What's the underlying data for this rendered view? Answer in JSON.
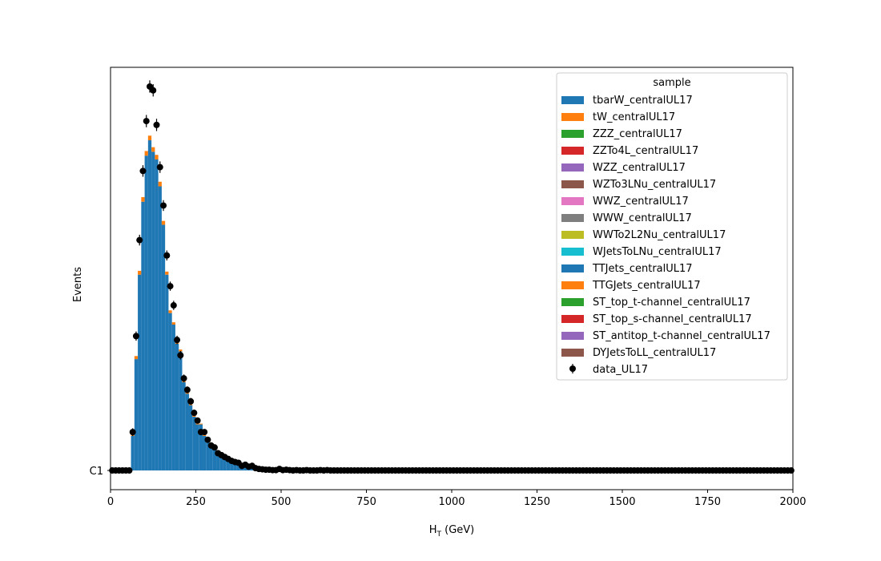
{
  "chart_data": {
    "type": "bar",
    "subtype": "stacked-histogram-with-data-points",
    "xlabel_base": "H",
    "xlabel_sub": "T",
    "xlabel_unit": " (GeV)",
    "ylabel": "Events",
    "xlim": [
      0,
      2000
    ],
    "ylim": [
      -0.05,
      1.05
    ],
    "x_ticks": [
      "0",
      "250",
      "500",
      "750",
      "1000",
      "1250",
      "1500",
      "1750",
      "2000"
    ],
    "y_ticks": [
      {
        "value": 0,
        "label": "C1"
      }
    ],
    "bin_width": 10,
    "grid": false,
    "legend": {
      "title": "sample",
      "placement": "top-right",
      "entries": [
        {
          "name": "tbarW_centralUL17",
          "color": "#1f77b4",
          "kind": "patch"
        },
        {
          "name": "tW_centralUL17",
          "color": "#ff7f0e",
          "kind": "patch"
        },
        {
          "name": "ZZZ_centralUL17",
          "color": "#2ca02c",
          "kind": "patch"
        },
        {
          "name": "ZZTo4L_centralUL17",
          "color": "#d62728",
          "kind": "patch"
        },
        {
          "name": "WZZ_centralUL17",
          "color": "#9467bd",
          "kind": "patch"
        },
        {
          "name": "WZTo3LNu_centralUL17",
          "color": "#8c564b",
          "kind": "patch"
        },
        {
          "name": "WWZ_centralUL17",
          "color": "#e377c2",
          "kind": "patch"
        },
        {
          "name": "WWW_centralUL17",
          "color": "#7f7f7f",
          "kind": "patch"
        },
        {
          "name": "WWTo2L2Nu_centralUL17",
          "color": "#bcbd22",
          "kind": "patch"
        },
        {
          "name": "WJetsToLNu_centralUL17",
          "color": "#17becf",
          "kind": "patch"
        },
        {
          "name": "TTJets_centralUL17",
          "color": "#1f77b4",
          "kind": "patch"
        },
        {
          "name": "TTGJets_centralUL17",
          "color": "#ff7f0e",
          "kind": "patch"
        },
        {
          "name": "ST_top_t-channel_centralUL17",
          "color": "#2ca02c",
          "kind": "patch"
        },
        {
          "name": "ST_top_s-channel_centralUL17",
          "color": "#d62728",
          "kind": "patch"
        },
        {
          "name": "ST_antitop_t-channel_centralUL17",
          "color": "#9467bd",
          "kind": "patch"
        },
        {
          "name": "DYJetsToLL_centralUL17",
          "color": "#8c564b",
          "kind": "patch"
        },
        {
          "name": "data_UL17",
          "color": "#000000",
          "kind": "point"
        }
      ]
    },
    "mc_bins": [
      {
        "x": 60,
        "main": 0.09,
        "top": 0.005
      },
      {
        "x": 70,
        "main": 0.29,
        "top": 0.008
      },
      {
        "x": 80,
        "main": 0.51,
        "top": 0.01
      },
      {
        "x": 90,
        "main": 0.7,
        "top": 0.012
      },
      {
        "x": 100,
        "main": 0.82,
        "top": 0.012
      },
      {
        "x": 110,
        "main": 0.86,
        "top": 0.012
      },
      {
        "x": 120,
        "main": 0.83,
        "top": 0.012
      },
      {
        "x": 130,
        "main": 0.81,
        "top": 0.012
      },
      {
        "x": 140,
        "main": 0.74,
        "top": 0.012
      },
      {
        "x": 150,
        "main": 0.64,
        "top": 0.01
      },
      {
        "x": 160,
        "main": 0.51,
        "top": 0.008
      },
      {
        "x": 170,
        "main": 0.41,
        "top": 0.007
      },
      {
        "x": 180,
        "main": 0.38,
        "top": 0.006
      },
      {
        "x": 190,
        "main": 0.33,
        "top": 0.005
      },
      {
        "x": 200,
        "main": 0.31,
        "top": 0.005
      },
      {
        "x": 210,
        "main": 0.23,
        "top": 0.004
      },
      {
        "x": 220,
        "main": 0.2,
        "top": 0.003
      },
      {
        "x": 230,
        "main": 0.17,
        "top": 0.003
      },
      {
        "x": 240,
        "main": 0.14,
        "top": 0.003
      },
      {
        "x": 250,
        "main": 0.12,
        "top": 0.002
      },
      {
        "x": 260,
        "main": 0.12,
        "top": 0.002
      },
      {
        "x": 270,
        "main": 0.09,
        "top": 0.002
      },
      {
        "x": 280,
        "main": 0.08,
        "top": 0.002
      },
      {
        "x": 290,
        "main": 0.065,
        "top": 0.001
      },
      {
        "x": 300,
        "main": 0.055,
        "top": 0.001
      },
      {
        "x": 310,
        "main": 0.045,
        "top": 0.001
      },
      {
        "x": 320,
        "main": 0.038,
        "top": 0.001
      },
      {
        "x": 330,
        "main": 0.032,
        "top": 0.001
      },
      {
        "x": 340,
        "main": 0.026,
        "top": 0.001
      },
      {
        "x": 350,
        "main": 0.022,
        "top": 0.001
      },
      {
        "x": 360,
        "main": 0.019,
        "top": 0.001
      },
      {
        "x": 370,
        "main": 0.016,
        "top": 0.0
      },
      {
        "x": 380,
        "main": 0.013,
        "top": 0.0
      },
      {
        "x": 390,
        "main": 0.011,
        "top": 0.0
      },
      {
        "x": 400,
        "main": 0.009,
        "top": 0.0
      },
      {
        "x": 410,
        "main": 0.008,
        "top": 0.0
      },
      {
        "x": 420,
        "main": 0.007,
        "top": 0.0
      },
      {
        "x": 430,
        "main": 0.006,
        "top": 0.0
      },
      {
        "x": 440,
        "main": 0.005,
        "top": 0.0
      },
      {
        "x": 450,
        "main": 0.004,
        "top": 0.0
      },
      {
        "x": 460,
        "main": 0.0035,
        "top": 0.0
      },
      {
        "x": 470,
        "main": 0.003,
        "top": 0.0
      },
      {
        "x": 480,
        "main": 0.0025,
        "top": 0.0
      },
      {
        "x": 490,
        "main": 0.002,
        "top": 0.0
      }
    ],
    "data_points": [
      {
        "x": 5,
        "y": 0.0,
        "err": 0.0
      },
      {
        "x": 15,
        "y": 0.0,
        "err": 0.0
      },
      {
        "x": 25,
        "y": 0.0,
        "err": 0.0
      },
      {
        "x": 35,
        "y": 0.0,
        "err": 0.0
      },
      {
        "x": 45,
        "y": 0.0,
        "err": 0.0
      },
      {
        "x": 55,
        "y": 0.0,
        "err": 0.0
      },
      {
        "x": 65,
        "y": 0.1,
        "err": 0.01
      },
      {
        "x": 75,
        "y": 0.35,
        "err": 0.012
      },
      {
        "x": 85,
        "y": 0.6,
        "err": 0.014
      },
      {
        "x": 95,
        "y": 0.78,
        "err": 0.015
      },
      {
        "x": 105,
        "y": 0.91,
        "err": 0.016
      },
      {
        "x": 115,
        "y": 1.0,
        "err": 0.016
      },
      {
        "x": 125,
        "y": 0.99,
        "err": 0.016
      },
      {
        "x": 135,
        "y": 0.9,
        "err": 0.016
      },
      {
        "x": 145,
        "y": 0.79,
        "err": 0.015
      },
      {
        "x": 155,
        "y": 0.69,
        "err": 0.014
      },
      {
        "x": 165,
        "y": 0.56,
        "err": 0.013
      },
      {
        "x": 175,
        "y": 0.48,
        "err": 0.012
      },
      {
        "x": 185,
        "y": 0.43,
        "err": 0.012
      },
      {
        "x": 195,
        "y": 0.34,
        "err": 0.011
      },
      {
        "x": 205,
        "y": 0.3,
        "err": 0.011
      },
      {
        "x": 215,
        "y": 0.24,
        "err": 0.01
      },
      {
        "x": 225,
        "y": 0.21,
        "err": 0.009
      },
      {
        "x": 235,
        "y": 0.18,
        "err": 0.009
      },
      {
        "x": 245,
        "y": 0.15,
        "err": 0.008
      },
      {
        "x": 255,
        "y": 0.13,
        "err": 0.008
      },
      {
        "x": 265,
        "y": 0.1,
        "err": 0.007
      },
      {
        "x": 275,
        "y": 0.1,
        "err": 0.007
      },
      {
        "x": 285,
        "y": 0.08,
        "err": 0.006
      },
      {
        "x": 295,
        "y": 0.065,
        "err": 0.006
      },
      {
        "x": 305,
        "y": 0.06,
        "err": 0.006
      },
      {
        "x": 315,
        "y": 0.045,
        "err": 0.005
      },
      {
        "x": 325,
        "y": 0.04,
        "err": 0.005
      },
      {
        "x": 335,
        "y": 0.035,
        "err": 0.005
      },
      {
        "x": 345,
        "y": 0.03,
        "err": 0.004
      },
      {
        "x": 355,
        "y": 0.025,
        "err": 0.004
      },
      {
        "x": 365,
        "y": 0.022,
        "err": 0.004
      },
      {
        "x": 375,
        "y": 0.02,
        "err": 0.004
      },
      {
        "x": 385,
        "y": 0.012,
        "err": 0.003
      },
      {
        "x": 395,
        "y": 0.015,
        "err": 0.003
      },
      {
        "x": 405,
        "y": 0.01,
        "err": 0.003
      },
      {
        "x": 415,
        "y": 0.012,
        "err": 0.003
      },
      {
        "x": 425,
        "y": 0.006,
        "err": 0.002
      },
      {
        "x": 435,
        "y": 0.004,
        "err": 0.002
      },
      {
        "x": 445,
        "y": 0.003,
        "err": 0.002
      },
      {
        "x": 455,
        "y": 0.002,
        "err": 0.002
      },
      {
        "x": 465,
        "y": 0.002,
        "err": 0.002
      },
      {
        "x": 475,
        "y": 0.001,
        "err": 0.001
      },
      {
        "x": 485,
        "y": 0.001,
        "err": 0.001
      },
      {
        "x": 495,
        "y": 0.004,
        "err": 0.002
      },
      {
        "x": 505,
        "y": 0.001,
        "err": 0.001
      },
      {
        "x": 515,
        "y": 0.002,
        "err": 0.001
      },
      {
        "x": 525,
        "y": 0.001,
        "err": 0.001
      },
      {
        "x": 535,
        "y": 0.0,
        "err": 0.0
      },
      {
        "x": 545,
        "y": 0.001,
        "err": 0.001
      },
      {
        "x": 555,
        "y": 0.0,
        "err": 0.0
      },
      {
        "x": 565,
        "y": 0.0,
        "err": 0.0
      },
      {
        "x": 575,
        "y": 0.001,
        "err": 0.001
      },
      {
        "x": 585,
        "y": 0.0,
        "err": 0.0
      },
      {
        "x": 595,
        "y": 0.0,
        "err": 0.0
      },
      {
        "x": 605,
        "y": 0.0,
        "err": 0.0
      },
      {
        "x": 615,
        "y": 0.001,
        "err": 0.001
      },
      {
        "x": 625,
        "y": 0.0,
        "err": 0.0
      },
      {
        "x": 635,
        "y": 0.001,
        "err": 0.001
      },
      {
        "x": 645,
        "y": 0.0,
        "err": 0.0
      }
    ]
  }
}
